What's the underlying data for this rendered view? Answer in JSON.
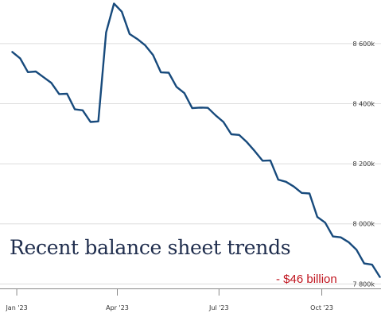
{
  "chart_data": {
    "type": "line",
    "title": "Recent balance sheet trends",
    "annotation": "- $46 billion",
    "xlabel": "",
    "ylabel": "",
    "x_ticks": [
      "Jan '23",
      "Apr '23",
      "Jul '23",
      "Oct '23"
    ],
    "y_ticks": [
      "7 800k",
      "8 000k",
      "8 200k",
      "8 400k",
      "8 600k"
    ],
    "ylim": [
      7785,
      8745
    ],
    "grid": true,
    "series": [
      {
        "color": "#174a7c",
        "x": [
          "2022-12-28",
          "2023-01-04",
          "2023-01-11",
          "2023-01-18",
          "2023-01-25",
          "2023-02-01",
          "2023-02-08",
          "2023-02-15",
          "2023-02-22",
          "2023-03-01",
          "2023-03-08",
          "2023-03-15",
          "2023-03-22",
          "2023-03-29",
          "2023-04-05",
          "2023-04-12",
          "2023-04-19",
          "2023-04-26",
          "2023-05-03",
          "2023-05-10",
          "2023-05-17",
          "2023-05-24",
          "2023-05-31",
          "2023-06-07",
          "2023-06-14",
          "2023-06-21",
          "2023-06-28",
          "2023-07-05",
          "2023-07-12",
          "2023-07-19",
          "2023-07-26",
          "2023-08-02",
          "2023-08-09",
          "2023-08-16",
          "2023-08-23",
          "2023-08-30",
          "2023-09-06",
          "2023-09-13",
          "2023-09-20",
          "2023-09-27",
          "2023-10-04",
          "2023-10-11",
          "2023-10-18",
          "2023-10-25",
          "2023-11-01",
          "2023-11-08",
          "2023-11-15",
          "2023-11-22"
        ],
        "values": [
          8572,
          8551,
          8505,
          8507,
          8488,
          8469,
          8432,
          8433,
          8381,
          8378,
          8339,
          8341,
          8637,
          8733,
          8706,
          8632,
          8615,
          8594,
          8562,
          8504,
          8503,
          8456,
          8435,
          8385,
          8387,
          8386,
          8361,
          8339,
          8298,
          8296,
          8272,
          8242,
          8210,
          8211,
          8147,
          8140,
          8124,
          8103,
          8101,
          8023,
          8004,
          7958,
          7955,
          7939,
          7914,
          7868,
          7864,
          7823
        ]
      }
    ]
  }
}
